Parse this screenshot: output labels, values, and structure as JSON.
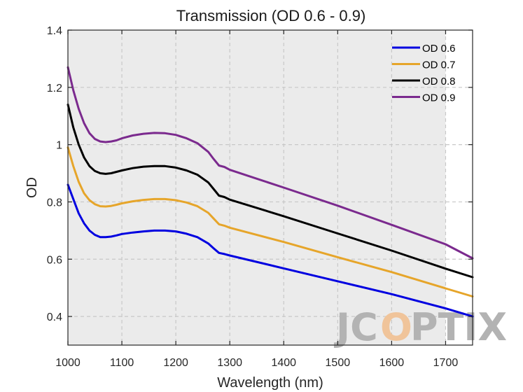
{
  "chart_data": {
    "type": "line",
    "title": "Transmission (OD 0.6 - 0.9)",
    "xlabel": "Wavelength (nm)",
    "ylabel": "OD",
    "xlim": [
      1000,
      1750
    ],
    "ylim": [
      0.3,
      1.4
    ],
    "xticks": [
      1000,
      1100,
      1200,
      1300,
      1400,
      1500,
      1600,
      1700
    ],
    "yticks": [
      0.4,
      0.6,
      0.8,
      1.0,
      1.2,
      1.4
    ],
    "xtick_labels": [
      "1000",
      "1100",
      "1200",
      "1300",
      "1400",
      "1500",
      "1600",
      "1700"
    ],
    "ytick_labels": [
      "0.4",
      "0.6",
      "0.8",
      "1",
      "1.2",
      "1.4"
    ],
    "grid": true,
    "shaded_region": [
      1000,
      1700
    ],
    "legend": "top-right",
    "series": [
      {
        "name": "OD 0.6",
        "color": "#0000e0",
        "x": [
          1000,
          1010,
          1020,
          1030,
          1040,
          1050,
          1060,
          1070,
          1080,
          1090,
          1100,
          1120,
          1140,
          1160,
          1180,
          1200,
          1220,
          1240,
          1260,
          1270,
          1280,
          1290,
          1300,
          1400,
          1500,
          1600,
          1700,
          1750
        ],
        "y": [
          0.86,
          0.81,
          0.76,
          0.725,
          0.7,
          0.685,
          0.677,
          0.677,
          0.679,
          0.683,
          0.688,
          0.693,
          0.697,
          0.7,
          0.7,
          0.697,
          0.689,
          0.677,
          0.655,
          0.638,
          0.622,
          0.618,
          0.613,
          0.568,
          0.523,
          0.478,
          0.428,
          0.4
        ]
      },
      {
        "name": "OD 0.7",
        "color": "#e6a52a",
        "x": [
          1000,
          1010,
          1020,
          1030,
          1040,
          1050,
          1060,
          1070,
          1080,
          1090,
          1100,
          1120,
          1140,
          1160,
          1180,
          1200,
          1220,
          1240,
          1260,
          1270,
          1280,
          1290,
          1300,
          1400,
          1500,
          1600,
          1700,
          1750
        ],
        "y": [
          0.99,
          0.925,
          0.87,
          0.83,
          0.806,
          0.792,
          0.785,
          0.784,
          0.786,
          0.79,
          0.795,
          0.802,
          0.807,
          0.81,
          0.81,
          0.806,
          0.798,
          0.785,
          0.762,
          0.742,
          0.722,
          0.717,
          0.71,
          0.66,
          0.607,
          0.555,
          0.498,
          0.47
        ]
      },
      {
        "name": "OD 0.8",
        "color": "#000000",
        "x": [
          1000,
          1010,
          1020,
          1030,
          1040,
          1050,
          1060,
          1070,
          1080,
          1090,
          1100,
          1120,
          1140,
          1160,
          1180,
          1200,
          1220,
          1240,
          1260,
          1270,
          1280,
          1290,
          1300,
          1400,
          1500,
          1600,
          1700,
          1750
        ],
        "y": [
          1.14,
          1.06,
          1.0,
          0.955,
          0.925,
          0.908,
          0.9,
          0.898,
          0.9,
          0.905,
          0.91,
          0.918,
          0.923,
          0.925,
          0.925,
          0.92,
          0.91,
          0.895,
          0.868,
          0.845,
          0.822,
          0.817,
          0.808,
          0.75,
          0.69,
          0.63,
          0.567,
          0.537
        ]
      },
      {
        "name": "OD 0.9",
        "color": "#7b2a8e",
        "x": [
          1000,
          1010,
          1020,
          1030,
          1040,
          1050,
          1060,
          1070,
          1080,
          1090,
          1100,
          1120,
          1140,
          1160,
          1180,
          1200,
          1220,
          1240,
          1260,
          1270,
          1280,
          1290,
          1300,
          1400,
          1500,
          1600,
          1700,
          1750
        ],
        "y": [
          1.27,
          1.19,
          1.125,
          1.075,
          1.04,
          1.02,
          1.011,
          1.009,
          1.011,
          1.015,
          1.022,
          1.032,
          1.038,
          1.041,
          1.04,
          1.034,
          1.022,
          1.005,
          0.975,
          0.95,
          0.927,
          0.922,
          0.912,
          0.85,
          0.787,
          0.72,
          0.652,
          0.603
        ]
      }
    ]
  },
  "watermark": {
    "text_left": "JC",
    "text_o": "O",
    "text_right": "PTIX",
    "gray": "#b3b3b3",
    "orange": "#f0c49a"
  }
}
